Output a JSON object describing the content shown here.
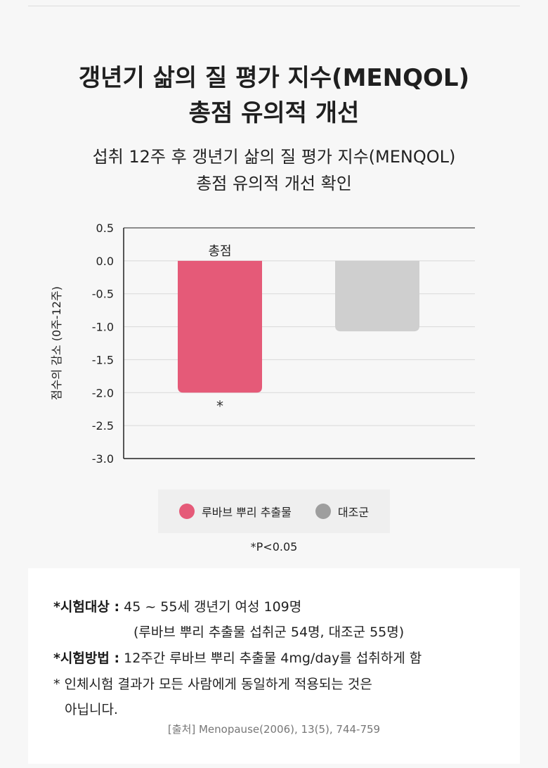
{
  "title": {
    "line1": "갱년기 삶의 질 평가 지수(MENQOL)",
    "line2": "총점 유의적 개선"
  },
  "subtitle": {
    "line1": "섭취 12주 후 갱년기 삶의 질 평가 지수(MENQOL)",
    "line2": "총점 유의적 개선 확인"
  },
  "chart_data": {
    "type": "bar",
    "categories": [
      "총점"
    ],
    "ylabel": "점수의 감소 (0주-12주)",
    "ylim": [
      -3.0,
      0.5
    ],
    "yticks": [
      "0.5",
      "0.0",
      "-0.5",
      "-1.0",
      "-1.5",
      "-2.0",
      "-2.5",
      "-3.0"
    ],
    "grid": true,
    "series": [
      {
        "name": "루바브 뿌리 추출물",
        "values": [
          -2.0
        ],
        "color": "#e55a78",
        "annotation": "*"
      },
      {
        "name": "대조군",
        "values": [
          -1.07
        ],
        "color": "#cfcfcf"
      }
    ],
    "legend_colors": [
      "#e55a78",
      "#9e9e9e"
    ],
    "footnote": "*P<0.05"
  },
  "info": {
    "target_label": "*시험대상 :",
    "target_text": "45 ~ 55세 갱년기 여성 109명",
    "target_detail": "(루바브 뿌리 추출물 섭취군 54명, 대조군 55명)",
    "method_label": "*시험방법 :",
    "method_text": "12주간 루바브 뿌리 추출물 4mg/day를 섭취하게 함",
    "note_line1": "*  인체시험 결과가 모든 사람에게 동일하게 적용되는 것은",
    "note_line2": "아닙니다.",
    "source": "[출처] Menopause(2006), 13(5), 744-759"
  }
}
